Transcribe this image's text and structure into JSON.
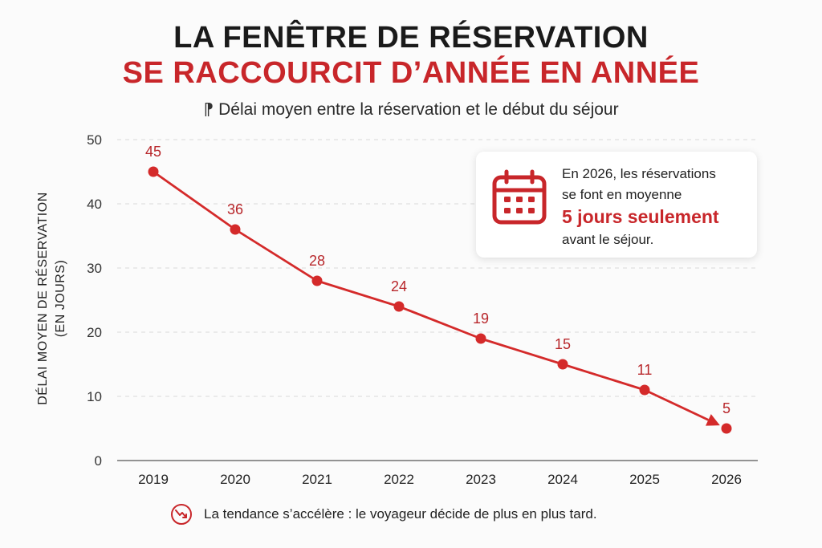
{
  "header": {
    "title_line1": "LA FENÊTRE DE RÉSERVATION",
    "title_line2": "SE RACCOURCIT D’ANNÉE EN ANNÉE",
    "subtitle": "Délai moyen entre la réservation et le début du séjour",
    "subtitle_glyph": "⁋"
  },
  "chart_data": {
    "type": "line",
    "title": "LA FENÊTRE DE RÉSERVATION SE RACCOURCIT D’ANNÉE EN ANNÉE",
    "subtitle": "Délai moyen entre la réservation et le début du séjour",
    "ylabel_line1": "DÉLAI MOYEN DE RÉSERVATION",
    "ylabel_line2": "(EN JOURS)",
    "xlabel": "",
    "categories": [
      "2019",
      "2020",
      "2021",
      "2022",
      "2023",
      "2024",
      "2025",
      "2026"
    ],
    "values": [
      45,
      36,
      28,
      24,
      19,
      15,
      11,
      5
    ],
    "data_labels": [
      "45",
      "36",
      "28",
      "24",
      "19",
      "15",
      "11",
      "5"
    ],
    "y_ticks": [
      "0",
      "10",
      "20",
      "30",
      "40",
      "50"
    ],
    "ylim": [
      0,
      50
    ],
    "grid": "dashed horizontal",
    "line_color": "#d42a2a",
    "label_color": "#b8272b"
  },
  "callout": {
    "icon": "calendar-icon",
    "line1": "En 2026, les réservations",
    "line2": "se font en moyenne",
    "highlight": "5 jours seulement",
    "line4": "avant le séjour.",
    "accent": "#c8262a"
  },
  "footer": {
    "icon": "trend-down-icon",
    "text": "La tendance s’accélère : le voyageur décide de plus en plus tard."
  }
}
